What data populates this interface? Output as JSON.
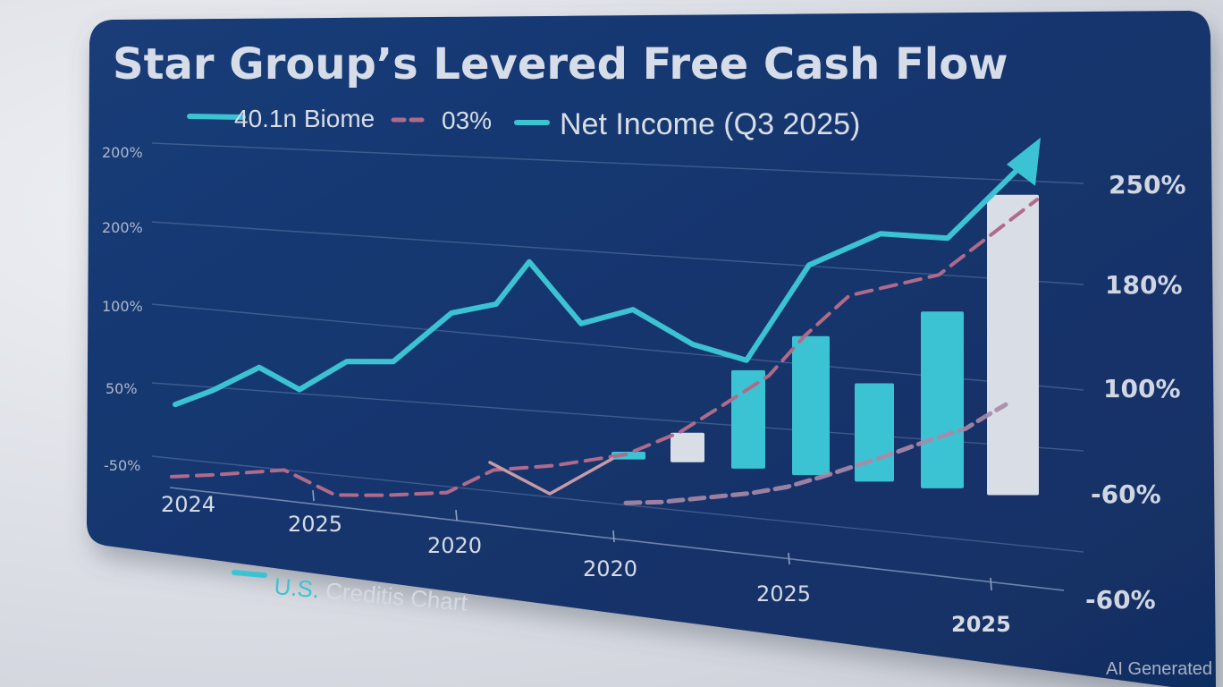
{
  "watermark": "AI Generated",
  "colors": {
    "panel": "#14356e",
    "cyan": "#3cc3d3",
    "pink": "#b06a8a",
    "white_bar": "#d8dde6",
    "gridline": "#5f7aa6"
  },
  "chart_data": {
    "type": "line",
    "title": "Star Group’s Levered Free Cash Flow",
    "legend": [
      {
        "label": "40.1n Biome",
        "style": "solid",
        "color": "#3cc3d3"
      },
      {
        "label": "03%",
        "style": "dashed",
        "color": "#b06a8a"
      },
      {
        "label": "Net Income (Q3 2025)",
        "style": "solid",
        "color": "#3cc3d3"
      }
    ],
    "y_left_ticks": [
      "200%",
      "200%",
      "100%",
      "50%",
      "-50%"
    ],
    "y_right_ticks": [
      "250%",
      "180%",
      "100%",
      "-60%",
      "-60%"
    ],
    "x_ticks": [
      "2024",
      "2025",
      "2020",
      "2020",
      "2025",
      "2025"
    ],
    "series": [
      {
        "style": "solid-cyan-arrow",
        "values": [
          40,
          58,
          86,
          62,
          95,
          96,
          150,
          160,
          205,
          140,
          155,
          120,
          105,
          200,
          230,
          225,
          290
        ]
      },
      {
        "style": "dashed-pink",
        "values": [
          -45,
          -40,
          -30,
          -55,
          -52,
          -45,
          -18,
          -10,
          5,
          30,
          60,
          90,
          130,
          170,
          190,
          260
        ]
      },
      {
        "style": "dashed-pink-lower",
        "values": [
          -45,
          -42,
          -35,
          -28,
          -20,
          -8,
          5,
          18,
          32,
          44,
          55,
          68
        ]
      },
      {
        "style": "solid-pink-short",
        "values": [
          -10,
          -40,
          0
        ]
      }
    ],
    "bars": [
      {
        "value": 8,
        "color": "cyan"
      },
      {
        "value": 30,
        "color": "white"
      },
      {
        "value": 95,
        "color": "cyan"
      },
      {
        "value": 130,
        "color": "cyan"
      },
      {
        "value": 85,
        "color": "cyan"
      },
      {
        "value": 155,
        "color": "cyan"
      },
      {
        "value": 265,
        "color": "white"
      }
    ],
    "footer_legend": {
      "label_a": "U.S.",
      "label_b": " Creditis Chart"
    }
  }
}
